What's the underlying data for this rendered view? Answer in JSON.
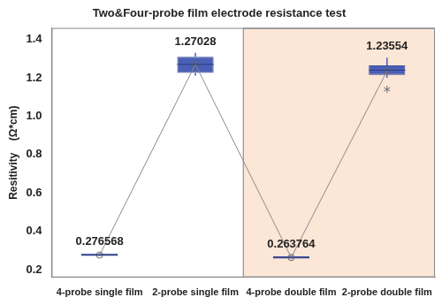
{
  "chart_data": {
    "type": "box",
    "title": "Two&Four-probe film electrode resistance test",
    "y_label": "Resitivity    (Ω*cm)",
    "categories": [
      "4-probe single film",
      "2-probe single film",
      "4-probe double film",
      "2-probe double film"
    ],
    "values": [
      0.276568,
      1.27028,
      0.263764,
      1.23554
    ],
    "data_labels": true,
    "boxes": [
      {
        "whisker_low": 0.27,
        "q1": 0.272,
        "median": 0.277,
        "q3": 0.285,
        "whisker_high": 0.287,
        "outliers": []
      },
      {
        "whisker_low": 1.21,
        "q1": 1.225,
        "median": 1.27,
        "q3": 1.31,
        "whisker_high": 1.33,
        "outliers": []
      },
      {
        "whisker_low": 0.255,
        "q1": 0.258,
        "median": 0.264,
        "q3": 0.27,
        "whisker_high": 0.273,
        "outliers": []
      },
      {
        "whisker_low": 1.2,
        "q1": 1.215,
        "median": 1.24,
        "q3": 1.265,
        "whisker_high": 1.305,
        "outliers": [
          1.14
        ]
      }
    ],
    "color": "#4a5fb5",
    "ylim": [
      0.16,
      1.46
    ],
    "yticks": [
      0.2,
      0.4,
      0.6,
      0.8,
      {
        "value": 1,
        "label": "1.0"
      },
      1.2,
      1.4
    ],
    "grid": false
  }
}
